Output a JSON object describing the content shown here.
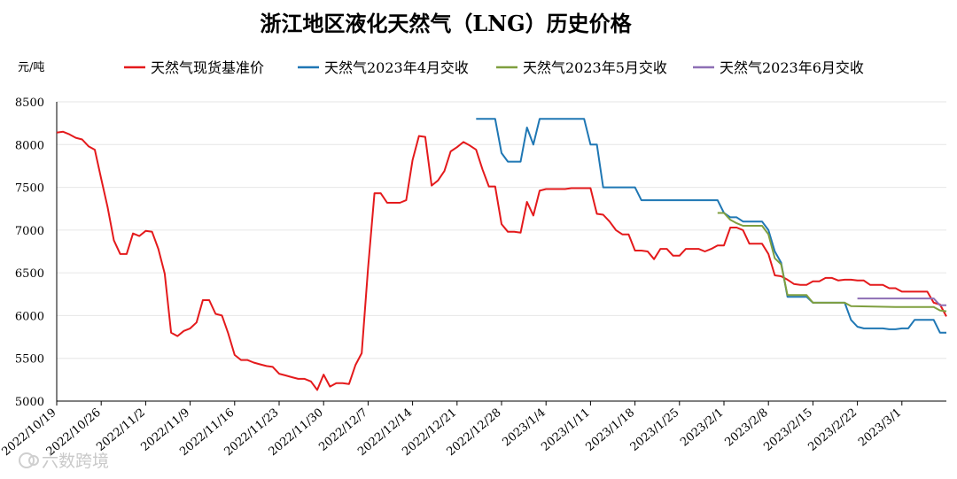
{
  "chart_data": {
    "type": "line",
    "title": "浙江地区液化天然气（LNG）历史价格",
    "unit_label": "元/吨",
    "watermark": "六数跨境",
    "legend_position": "top",
    "grid": "horizontal",
    "xlim": [
      "2022-10-19",
      "2023-03-08"
    ],
    "ylim": [
      5000,
      8500
    ],
    "y_ticks": [
      5000,
      5500,
      6000,
      6500,
      7000,
      7500,
      8000,
      8500
    ],
    "x_ticks": [
      "2022/10/19",
      "2022/10/26",
      "2022/11/2",
      "2022/11/9",
      "2022/11/16",
      "2022/11/23",
      "2022/11/30",
      "2022/12/7",
      "2022/12/14",
      "2022/12/21",
      "2022/12/28",
      "2023/1/4",
      "2023/1/11",
      "2023/1/18",
      "2023/1/25",
      "2023/2/1",
      "2023/2/8",
      "2023/2/15",
      "2023/2/22",
      "2023/3/1"
    ],
    "series": [
      {
        "name": "天然气现货基准价",
        "color": "#e41a1c",
        "points": [
          [
            "2022-10-19",
            8140
          ],
          [
            "2022-10-20",
            8150
          ],
          [
            "2022-10-21",
            8120
          ],
          [
            "2022-10-22",
            8080
          ],
          [
            "2022-10-23",
            8060
          ],
          [
            "2022-10-24",
            7980
          ],
          [
            "2022-10-25",
            7940
          ],
          [
            "2022-10-26",
            7600
          ],
          [
            "2022-10-27",
            7270
          ],
          [
            "2022-10-28",
            6880
          ],
          [
            "2022-10-29",
            6720
          ],
          [
            "2022-10-30",
            6720
          ],
          [
            "2022-10-31",
            6960
          ],
          [
            "2022-11-01",
            6930
          ],
          [
            "2022-11-02",
            6990
          ],
          [
            "2022-11-03",
            6980
          ],
          [
            "2022-11-04",
            6780
          ],
          [
            "2022-11-05",
            6490
          ],
          [
            "2022-11-06",
            5800
          ],
          [
            "2022-11-07",
            5760
          ],
          [
            "2022-11-08",
            5820
          ],
          [
            "2022-11-09",
            5850
          ],
          [
            "2022-11-10",
            5920
          ],
          [
            "2022-11-11",
            6180
          ],
          [
            "2022-11-12",
            6180
          ],
          [
            "2022-11-13",
            6020
          ],
          [
            "2022-11-14",
            6000
          ],
          [
            "2022-11-15",
            5790
          ],
          [
            "2022-11-16",
            5540
          ],
          [
            "2022-11-17",
            5480
          ],
          [
            "2022-11-18",
            5480
          ],
          [
            "2022-11-19",
            5450
          ],
          [
            "2022-11-20",
            5430
          ],
          [
            "2022-11-21",
            5410
          ],
          [
            "2022-11-22",
            5400
          ],
          [
            "2022-11-23",
            5320
          ],
          [
            "2022-11-24",
            5300
          ],
          [
            "2022-11-25",
            5280
          ],
          [
            "2022-11-26",
            5260
          ],
          [
            "2022-11-27",
            5260
          ],
          [
            "2022-11-28",
            5230
          ],
          [
            "2022-11-29",
            5130
          ],
          [
            "2022-11-30",
            5310
          ],
          [
            "2022-12-01",
            5170
          ],
          [
            "2022-12-02",
            5210
          ],
          [
            "2022-12-03",
            5210
          ],
          [
            "2022-12-04",
            5200
          ],
          [
            "2022-12-05",
            5420
          ],
          [
            "2022-12-06",
            5560
          ],
          [
            "2022-12-07",
            6560
          ],
          [
            "2022-12-08",
            7430
          ],
          [
            "2022-12-09",
            7430
          ],
          [
            "2022-12-10",
            7320
          ],
          [
            "2022-12-11",
            7320
          ],
          [
            "2022-12-12",
            7320
          ],
          [
            "2022-12-13",
            7350
          ],
          [
            "2022-12-14",
            7820
          ],
          [
            "2022-12-15",
            8100
          ],
          [
            "2022-12-16",
            8090
          ],
          [
            "2022-12-17",
            7520
          ],
          [
            "2022-12-18",
            7580
          ],
          [
            "2022-12-19",
            7690
          ],
          [
            "2022-12-20",
            7920
          ],
          [
            "2022-12-21",
            7970
          ],
          [
            "2022-12-22",
            8030
          ],
          [
            "2022-12-23",
            7990
          ],
          [
            "2022-12-24",
            7940
          ],
          [
            "2022-12-25",
            7710
          ],
          [
            "2022-12-26",
            7510
          ],
          [
            "2022-12-27",
            7510
          ],
          [
            "2022-12-28",
            7070
          ],
          [
            "2022-12-29",
            6980
          ],
          [
            "2022-12-30",
            6980
          ],
          [
            "2022-12-31",
            6970
          ],
          [
            "2023-01-01",
            7330
          ],
          [
            "2023-01-02",
            7170
          ],
          [
            "2023-01-03",
            7460
          ],
          [
            "2023-01-04",
            7480
          ],
          [
            "2023-01-05",
            7480
          ],
          [
            "2023-01-06",
            7480
          ],
          [
            "2023-01-07",
            7480
          ],
          [
            "2023-01-08",
            7490
          ],
          [
            "2023-01-09",
            7490
          ],
          [
            "2023-01-10",
            7490
          ],
          [
            "2023-01-11",
            7490
          ],
          [
            "2023-01-12",
            7190
          ],
          [
            "2023-01-13",
            7180
          ],
          [
            "2023-01-14",
            7100
          ],
          [
            "2023-01-15",
            7000
          ],
          [
            "2023-01-16",
            6950
          ],
          [
            "2023-01-17",
            6950
          ],
          [
            "2023-01-18",
            6760
          ],
          [
            "2023-01-19",
            6760
          ],
          [
            "2023-01-20",
            6750
          ],
          [
            "2023-01-21",
            6660
          ],
          [
            "2023-01-22",
            6780
          ],
          [
            "2023-01-23",
            6780
          ],
          [
            "2023-01-24",
            6700
          ],
          [
            "2023-01-25",
            6700
          ],
          [
            "2023-01-26",
            6780
          ],
          [
            "2023-01-27",
            6780
          ],
          [
            "2023-01-28",
            6780
          ],
          [
            "2023-01-29",
            6750
          ],
          [
            "2023-01-30",
            6780
          ],
          [
            "2023-01-31",
            6820
          ],
          [
            "2023-02-01",
            6820
          ],
          [
            "2023-02-02",
            7030
          ],
          [
            "2023-02-03",
            7030
          ],
          [
            "2023-02-04",
            7000
          ],
          [
            "2023-02-05",
            6840
          ],
          [
            "2023-02-06",
            6840
          ],
          [
            "2023-02-07",
            6840
          ],
          [
            "2023-02-08",
            6720
          ],
          [
            "2023-02-09",
            6470
          ],
          [
            "2023-02-10",
            6460
          ],
          [
            "2023-02-11",
            6420
          ],
          [
            "2023-02-12",
            6370
          ],
          [
            "2023-02-13",
            6360
          ],
          [
            "2023-02-14",
            6360
          ],
          [
            "2023-02-15",
            6400
          ],
          [
            "2023-02-16",
            6400
          ],
          [
            "2023-02-17",
            6440
          ],
          [
            "2023-02-18",
            6440
          ],
          [
            "2023-02-19",
            6410
          ],
          [
            "2023-02-20",
            6420
          ],
          [
            "2023-02-21",
            6420
          ],
          [
            "2023-02-22",
            6410
          ],
          [
            "2023-02-23",
            6410
          ],
          [
            "2023-02-24",
            6360
          ],
          [
            "2023-02-25",
            6360
          ],
          [
            "2023-02-26",
            6360
          ],
          [
            "2023-02-27",
            6320
          ],
          [
            "2023-02-28",
            6320
          ],
          [
            "2023-03-01",
            6280
          ],
          [
            "2023-03-02",
            6280
          ],
          [
            "2023-03-03",
            6280
          ],
          [
            "2023-03-04",
            6280
          ],
          [
            "2023-03-05",
            6280
          ],
          [
            "2023-03-06",
            6150
          ],
          [
            "2023-03-07",
            6130
          ],
          [
            "2023-03-08",
            5990
          ]
        ]
      },
      {
        "name": "天然气2023年4月交收",
        "color": "#1f77b4",
        "points": [
          [
            "2022-12-24",
            8300
          ],
          [
            "2022-12-27",
            8300
          ],
          [
            "2022-12-28",
            7900
          ],
          [
            "2022-12-29",
            7800
          ],
          [
            "2022-12-31",
            7800
          ],
          [
            "2023-01-01",
            8200
          ],
          [
            "2023-01-02",
            8000
          ],
          [
            "2023-01-03",
            8300
          ],
          [
            "2023-01-10",
            8300
          ],
          [
            "2023-01-11",
            8000
          ],
          [
            "2023-01-12",
            8000
          ],
          [
            "2023-01-13",
            7500
          ],
          [
            "2023-01-18",
            7500
          ],
          [
            "2023-01-19",
            7350
          ],
          [
            "2023-01-31",
            7350
          ],
          [
            "2023-02-01",
            7200
          ],
          [
            "2023-02-02",
            7150
          ],
          [
            "2023-02-03",
            7150
          ],
          [
            "2023-02-04",
            7100
          ],
          [
            "2023-02-07",
            7100
          ],
          [
            "2023-02-08",
            7000
          ],
          [
            "2023-02-09",
            6750
          ],
          [
            "2023-02-10",
            6620
          ],
          [
            "2023-02-11",
            6220
          ],
          [
            "2023-02-14",
            6220
          ],
          [
            "2023-02-15",
            6150
          ],
          [
            "2023-02-20",
            6150
          ],
          [
            "2023-02-21",
            5950
          ],
          [
            "2023-02-22",
            5870
          ],
          [
            "2023-02-23",
            5850
          ],
          [
            "2023-02-26",
            5850
          ],
          [
            "2023-02-27",
            5840
          ],
          [
            "2023-02-28",
            5840
          ],
          [
            "2023-03-01",
            5850
          ],
          [
            "2023-03-02",
            5850
          ],
          [
            "2023-03-03",
            5950
          ],
          [
            "2023-03-05",
            5950
          ],
          [
            "2023-03-06",
            5950
          ],
          [
            "2023-03-07",
            5800
          ],
          [
            "2023-03-08",
            5800
          ]
        ]
      },
      {
        "name": "天然气2023年5月交收",
        "color": "#7f9f3f",
        "points": [
          [
            "2023-01-31",
            7200
          ],
          [
            "2023-02-01",
            7200
          ],
          [
            "2023-02-02",
            7120
          ],
          [
            "2023-02-03",
            7080
          ],
          [
            "2023-02-04",
            7050
          ],
          [
            "2023-02-07",
            7050
          ],
          [
            "2023-02-08",
            6950
          ],
          [
            "2023-02-09",
            6670
          ],
          [
            "2023-02-10",
            6600
          ],
          [
            "2023-02-11",
            6240
          ],
          [
            "2023-02-14",
            6240
          ],
          [
            "2023-02-15",
            6150
          ],
          [
            "2023-02-20",
            6150
          ],
          [
            "2023-02-21",
            6110
          ],
          [
            "2023-02-28",
            6100
          ],
          [
            "2023-03-03",
            6100
          ],
          [
            "2023-03-06",
            6100
          ],
          [
            "2023-03-07",
            6060
          ],
          [
            "2023-03-08",
            6050
          ]
        ]
      },
      {
        "name": "天然气2023年6月交收",
        "color": "#8e6fb5",
        "points": [
          [
            "2023-02-22",
            6200
          ],
          [
            "2023-03-06",
            6200
          ],
          [
            "2023-03-07",
            6120
          ],
          [
            "2023-03-08",
            6120
          ]
        ]
      }
    ]
  }
}
